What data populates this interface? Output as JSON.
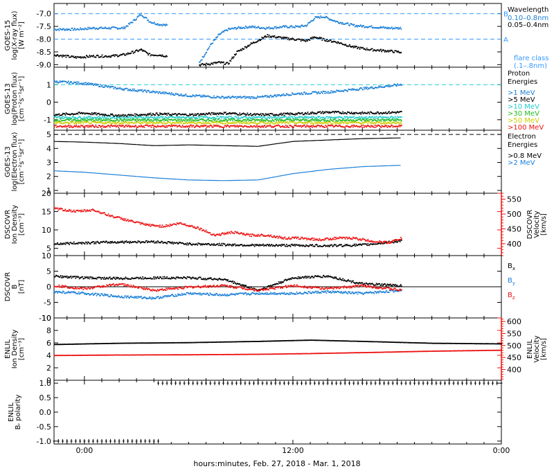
{
  "colors": {
    "black": "#000000",
    "blue": "#1a7fd8",
    "cyan": "#22cccc",
    "green": "#22bb22",
    "yellow": "#cccc00",
    "orange": "#ff8800",
    "red": "#ee1111",
    "flare_blue": "#3399ff"
  },
  "xaxis": {
    "label": "hours:minutes, Feb. 27, 2018 - Mar. 1, 2018",
    "range_hours": [
      -3.5,
      48
    ],
    "ticks": [
      {
        "h": 0,
        "label": "0:00"
      },
      {
        "h": 24,
        "label": "12:00"
      },
      {
        "h": 48,
        "label": "0:00"
      }
    ],
    "minor_step_hours": 2
  },
  "chart_data": [
    {
      "type": "scatter",
      "id": "xray",
      "ylabel": "GOES-15\nlog(X-ray flux)\n[W m⁻²]",
      "ylim": [
        -9.1,
        -6.6
      ],
      "yticks": [
        -9.0,
        -8.5,
        -8.0,
        -7.5,
        -7.0
      ],
      "ytick_labels": [
        "-9.0",
        "-8.5",
        "-8.0",
        "-7.5",
        "-7.0"
      ],
      "legend": {
        "title": "Wavelength",
        "entries": [
          {
            "text": "0.10–0.8nm",
            "color": "blue"
          },
          {
            "text": "0.05–0.4nm",
            "color": "black"
          }
        ],
        "note": [
          "flare class",
          "(.1–.8nm)"
        ]
      },
      "ref_lines": [
        {
          "y": -7.0,
          "label": "B",
          "color": "flare_blue",
          "dash": true
        },
        {
          "y": -8.0,
          "label": "A",
          "color": "flare_blue",
          "dash": true
        }
      ],
      "series": [
        {
          "name": "0.10–0.8nm",
          "color": "blue",
          "segments": [
            {
              "x": [
                -3.5,
                -1,
                1,
                3,
                4.5,
                5.5,
                6.5,
                7.5,
                8.5,
                9.5
              ],
              "y": [
                -7.6,
                -7.6,
                -7.55,
                -7.55,
                -7.55,
                -7.3,
                -7.0,
                -7.3,
                -7.4,
                -7.45
              ]
            },
            {
              "x": [
                13.2,
                14.5,
                15.5,
                16.5,
                17.5,
                19,
                21,
                23,
                24.5,
                25.5,
                26.5,
                27.5,
                29,
                31,
                33,
                35,
                36.5
              ],
              "y": [
                -8.9,
                -8.2,
                -7.8,
                -7.6,
                -7.55,
                -7.5,
                -7.55,
                -7.5,
                -7.5,
                -7.45,
                -7.15,
                -7.1,
                -7.3,
                -7.45,
                -7.5,
                -7.55,
                -7.55
              ]
            }
          ]
        },
        {
          "name": "0.05–0.4nm",
          "color": "black",
          "segments": [
            {
              "x": [
                -3.5,
                -1,
                1,
                3,
                4.5,
                5.5,
                6.5,
                7.5,
                8.5,
                9.5
              ],
              "y": [
                -8.6,
                -8.7,
                -8.65,
                -8.65,
                -8.6,
                -8.5,
                -8.4,
                -8.6,
                -8.6,
                -8.65
              ]
            },
            {
              "x": [
                13.2,
                14.5,
                15.5,
                16.5,
                17.5,
                19,
                21,
                23,
                24.5,
                25.5,
                26.5,
                27.5,
                29,
                31,
                33,
                35,
                36.5
              ],
              "y": [
                -9.0,
                -8.95,
                -8.9,
                -8.95,
                -8.5,
                -8.2,
                -7.85,
                -7.95,
                -8.0,
                -8.05,
                -7.9,
                -8.0,
                -8.1,
                -8.3,
                -8.4,
                -8.45,
                -8.5
              ]
            }
          ]
        }
      ]
    },
    {
      "type": "scatter",
      "id": "proton",
      "ylabel": "GOES-13\nlog(Proton flux)\n[cm⁻²s⁻¹sr⁻¹]",
      "ylim": [
        -1.6,
        2.0
      ],
      "yticks": [
        -1,
        0,
        1
      ],
      "ytick_labels": [
        "-1",
        "0",
        "1"
      ],
      "legend": {
        "title": "Proton",
        "title2": "Energies",
        "entries": [
          {
            "text": ">1 MeV",
            "color": "blue"
          },
          {
            "text": ">5 MeV",
            "color": "black"
          },
          {
            "text": ">10 MeV",
            "color": "cyan"
          },
          {
            "text": ">30 MeV",
            "color": "green"
          },
          {
            "text": ">50 MeV",
            "color": "yellow"
          },
          {
            "text": ">100 MeV",
            "color": "red"
          }
        ]
      },
      "ref_lines": [
        {
          "y": 1.0,
          "color": "cyan",
          "dash": true
        }
      ],
      "series": [
        {
          "name": ">1 MeV",
          "color": "blue",
          "x": [
            -3.5,
            0,
            4,
            8,
            12,
            16,
            20,
            24,
            28,
            32,
            36,
            36.5
          ],
          "y": [
            1.2,
            1.1,
            0.8,
            0.6,
            0.4,
            0.3,
            0.3,
            0.5,
            0.6,
            0.8,
            1.0,
            1.05
          ]
        },
        {
          "name": ">5 MeV",
          "color": "black",
          "x": [
            -3.5,
            0,
            4,
            8,
            12,
            16,
            20,
            24,
            28,
            32,
            36.5
          ],
          "y": [
            -0.7,
            -0.6,
            -0.75,
            -0.65,
            -0.7,
            -0.6,
            -0.7,
            -0.65,
            -0.55,
            -0.6,
            -0.55
          ]
        },
        {
          "name": ">10 MeV",
          "color": "cyan",
          "x": [
            -3.5,
            0,
            4,
            8,
            12,
            16,
            20,
            24,
            28,
            32,
            36.5
          ],
          "y": [
            -0.85,
            -0.85,
            -0.85,
            -0.85,
            -0.85,
            -0.85,
            -0.85,
            -0.85,
            -0.85,
            -0.85,
            -0.85
          ]
        },
        {
          "name": ">30 MeV",
          "color": "green",
          "x": [
            -3.5,
            0,
            4,
            8,
            12,
            16,
            20,
            24,
            28,
            32,
            36.5
          ],
          "y": [
            -1.0,
            -1.0,
            -1.0,
            -1.0,
            -1.0,
            -1.0,
            -1.0,
            -1.0,
            -1.0,
            -1.0,
            -1.0
          ]
        },
        {
          "name": ">50 MeV",
          "color": "yellow",
          "x": [
            -3.5,
            0,
            4,
            8,
            12,
            16,
            20,
            24,
            28,
            32,
            36.5
          ],
          "y": [
            -1.15,
            -1.15,
            -1.15,
            -1.15,
            -1.15,
            -1.15,
            -1.15,
            -1.15,
            -1.15,
            -1.15,
            -1.15
          ]
        },
        {
          "name": ">100 MeV",
          "color": "red",
          "x": [
            -3.5,
            0,
            4,
            8,
            12,
            16,
            20,
            24,
            28,
            32,
            36.5
          ],
          "y": [
            -1.35,
            -1.35,
            -1.35,
            -1.35,
            -1.35,
            -1.35,
            -1.35,
            -1.35,
            -1.35,
            -1.35,
            -1.35
          ]
        }
      ]
    },
    {
      "type": "line",
      "id": "electron",
      "ylabel": "GOES-13\nlog(Electron flux)\n[cm⁻²s⁻¹sr⁻¹]",
      "ylim": [
        0.8,
        5.3
      ],
      "yticks": [
        1,
        2,
        3,
        4,
        5
      ],
      "ytick_labels": [
        "1",
        "2",
        "3",
        "4",
        "5"
      ],
      "legend": {
        "title": "Electron",
        "title2": "Energies",
        "entries": [
          {
            "text": ">0.8 MeV",
            "color": "black"
          },
          {
            "text": ">2 MeV",
            "color": "blue"
          }
        ]
      },
      "ref_lines": [
        {
          "y": 5.0,
          "color": "black",
          "dash": true
        }
      ],
      "series": [
        {
          "name": ">0.8 MeV",
          "color": "black",
          "x": [
            -3.5,
            0,
            4,
            8,
            12,
            16,
            20,
            24,
            28,
            32,
            36.5
          ],
          "y": [
            4.5,
            4.45,
            4.35,
            4.2,
            4.25,
            4.2,
            4.15,
            4.5,
            4.6,
            4.7,
            4.75
          ]
        },
        {
          "name": ">2 MeV",
          "color": "blue",
          "x": [
            -3.5,
            0,
            4,
            8,
            12,
            16,
            20,
            24,
            28,
            32,
            36.5
          ],
          "y": [
            2.4,
            2.3,
            2.1,
            1.9,
            1.75,
            1.7,
            1.75,
            2.2,
            2.5,
            2.7,
            2.8
          ]
        }
      ]
    },
    {
      "type": "scatter",
      "id": "dscovr_plasma",
      "ylabel": "DSCOVR\nIon Density\n[cm⁻³]",
      "ylim": [
        3,
        20
      ],
      "yticks": [
        5,
        10,
        15,
        20
      ],
      "ytick_labels": [
        "5",
        "10",
        "15",
        "20"
      ],
      "y2label": "DSCOVR\nVelocity\n[km/s]",
      "y2lim": [
        360,
        570
      ],
      "y2ticks": [
        400,
        450,
        500,
        550
      ],
      "y2tick_labels": [
        "400",
        "450",
        "500",
        "550"
      ],
      "series": [
        {
          "name": "Density",
          "color": "black",
          "axis": "left",
          "x": [
            -3.5,
            0,
            4,
            8,
            12,
            16,
            20,
            24,
            28,
            32,
            36.5
          ],
          "y": [
            6.3,
            6.6,
            6.8,
            6.9,
            6.3,
            6.1,
            5.9,
            5.9,
            5.8,
            6.0,
            7.1
          ]
        },
        {
          "name": "Velocity",
          "color": "red",
          "axis": "right",
          "x": [
            -3.5,
            -1,
            1,
            3,
            5,
            7,
            9,
            11,
            13,
            15,
            17,
            19,
            21,
            23,
            25,
            27,
            29,
            31,
            33,
            35,
            36.5
          ],
          "y": [
            520,
            510,
            515,
            495,
            480,
            465,
            460,
            470,
            455,
            430,
            440,
            430,
            430,
            420,
            420,
            415,
            420,
            420,
            410,
            405,
            420
          ]
        }
      ]
    },
    {
      "type": "scatter",
      "id": "dscovr_mag",
      "ylabel": "DSCOVR\nB\n[nT]",
      "ylim": [
        -10,
        10
      ],
      "yticks": [
        -10,
        -5,
        0,
        5,
        10
      ],
      "ytick_labels": [
        "-10",
        "-5",
        "0",
        "5",
        "10"
      ],
      "zero_line": true,
      "legend": {
        "entries": [
          {
            "text": "B",
            "sub": "x",
            "color": "black"
          },
          {
            "text": "B",
            "sub": "y",
            "color": "blue"
          },
          {
            "text": "B",
            "sub": "z",
            "color": "red"
          }
        ]
      },
      "series": [
        {
          "name": "Bx",
          "color": "black",
          "x": [
            -3.5,
            0,
            4,
            8,
            12,
            16,
            20,
            24,
            28,
            32,
            36.5
          ],
          "y": [
            3.5,
            3.0,
            2.8,
            3.0,
            3.0,
            2.5,
            -1.0,
            3.0,
            3.5,
            1.0,
            0.5
          ]
        },
        {
          "name": "By",
          "color": "blue",
          "x": [
            -3.5,
            0,
            4,
            8,
            12,
            16,
            20,
            24,
            28,
            32,
            36.5
          ],
          "y": [
            -1.5,
            -2.0,
            -3.0,
            -3.5,
            -2.0,
            -2.5,
            -2.0,
            -2.0,
            -1.5,
            -2.0,
            -1.0
          ]
        },
        {
          "name": "Bz",
          "color": "red",
          "x": [
            -3.5,
            0,
            4,
            8,
            12,
            16,
            20,
            24,
            28,
            32,
            36.5
          ],
          "y": [
            0.5,
            -0.5,
            1.0,
            -1.0,
            0.0,
            0.5,
            -1.0,
            0.5,
            -0.5,
            0.5,
            -1.0
          ]
        }
      ]
    },
    {
      "type": "scatter",
      "id": "enlil_plasma",
      "ylabel": "ENLIL\nIon Density\n[cm⁻³]",
      "ylim": [
        0,
        10
      ],
      "yticks": [
        0,
        2,
        4,
        6,
        8,
        10
      ],
      "ytick_labels": [
        "0",
        "2",
        "4",
        "6",
        "8",
        "10"
      ],
      "y2label": "ENLIL\nVelocity\n[km/s]",
      "y2lim": [
        355,
        615
      ],
      "y2ticks": [
        400,
        450,
        500,
        550,
        600
      ],
      "y2tick_labels": [
        "400",
        "450",
        "500",
        "550",
        "600"
      ],
      "series": [
        {
          "name": "Density",
          "color": "black",
          "axis": "left",
          "x": [
            -3.5,
            4,
            12,
            20,
            26,
            32,
            40,
            48
          ],
          "y": [
            5.8,
            6.0,
            6.1,
            6.3,
            6.5,
            6.3,
            6.0,
            5.9
          ]
        },
        {
          "name": "Velocity",
          "color": "red",
          "axis": "right",
          "x": [
            -3.5,
            4,
            12,
            20,
            26,
            32,
            40,
            48
          ],
          "y": [
            460,
            462,
            463,
            465,
            468,
            472,
            478,
            482
          ]
        }
      ]
    },
    {
      "type": "scatter",
      "id": "enlil_polarity",
      "ylabel": "ENLIL\nBᵣ polarity",
      "ylim": [
        -1.1,
        1.1
      ],
      "yticks": [
        -1.0,
        -0.5,
        0.0,
        0.5,
        1.0
      ],
      "ytick_labels": [
        "-1.0",
        "-0.5",
        "0.0",
        "0.5",
        "1.0"
      ],
      "series": [
        {
          "name": "polarity",
          "color": "black",
          "x": [
            -3.5,
            8.5,
            8.5,
            48
          ],
          "y": [
            -1.0,
            -1.0,
            1.0,
            1.0
          ]
        }
      ]
    }
  ]
}
